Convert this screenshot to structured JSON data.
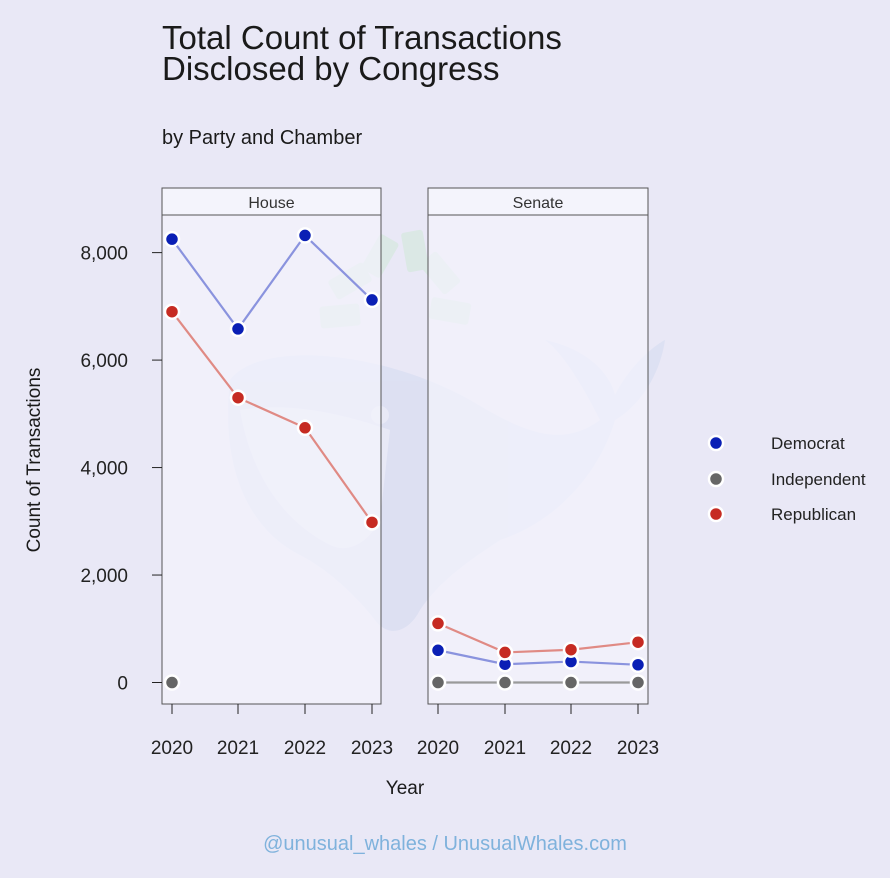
{
  "header": {
    "title_line1": "Total Count of Transactions",
    "title_line2": "Disclosed by Congress",
    "subtitle": "by Party and Chamber"
  },
  "footer": {
    "credit": "@unusual_whales / UnusualWhales.com"
  },
  "colors": {
    "background": "#e9e8f6",
    "panel": "#f4f4fc",
    "Democrat": "#0a1fb5",
    "Independent": "#666666",
    "Republican": "#c62b22",
    "Democrat_line": "#8a93de",
    "Independent_line": "#9a9a9a",
    "Republican_line": "#e08a84"
  },
  "chart_data": {
    "type": "line",
    "title": "Total Count of Transactions Disclosed by Congress",
    "subtitle": "by Party and Chamber",
    "xlabel": "Year",
    "ylabel": "Count of Transactions",
    "categories": [
      "2020",
      "2021",
      "2022",
      "2023"
    ],
    "ylim": [
      -400,
      8700
    ],
    "yticks": [
      0,
      2000,
      4000,
      6000,
      8000
    ],
    "ytick_labels": [
      "0",
      "2,000",
      "4,000",
      "6,000",
      "8,000"
    ],
    "legend": [
      "Democrat",
      "Independent",
      "Republican"
    ],
    "legend_position": "right",
    "panels": [
      {
        "name": "House",
        "series": [
          {
            "name": "Democrat",
            "values": [
              8250,
              6580,
              8320,
              7120
            ]
          },
          {
            "name": "Independent",
            "values": [
              0,
              null,
              null,
              null
            ]
          },
          {
            "name": "Republican",
            "values": [
              6900,
              5300,
              4740,
              2980
            ]
          }
        ]
      },
      {
        "name": "Senate",
        "series": [
          {
            "name": "Democrat",
            "values": [
              600,
              340,
              390,
              330
            ]
          },
          {
            "name": "Independent",
            "values": [
              0,
              0,
              0,
              0
            ]
          },
          {
            "name": "Republican",
            "values": [
              1100,
              560,
              610,
              750
            ]
          }
        ]
      }
    ]
  }
}
